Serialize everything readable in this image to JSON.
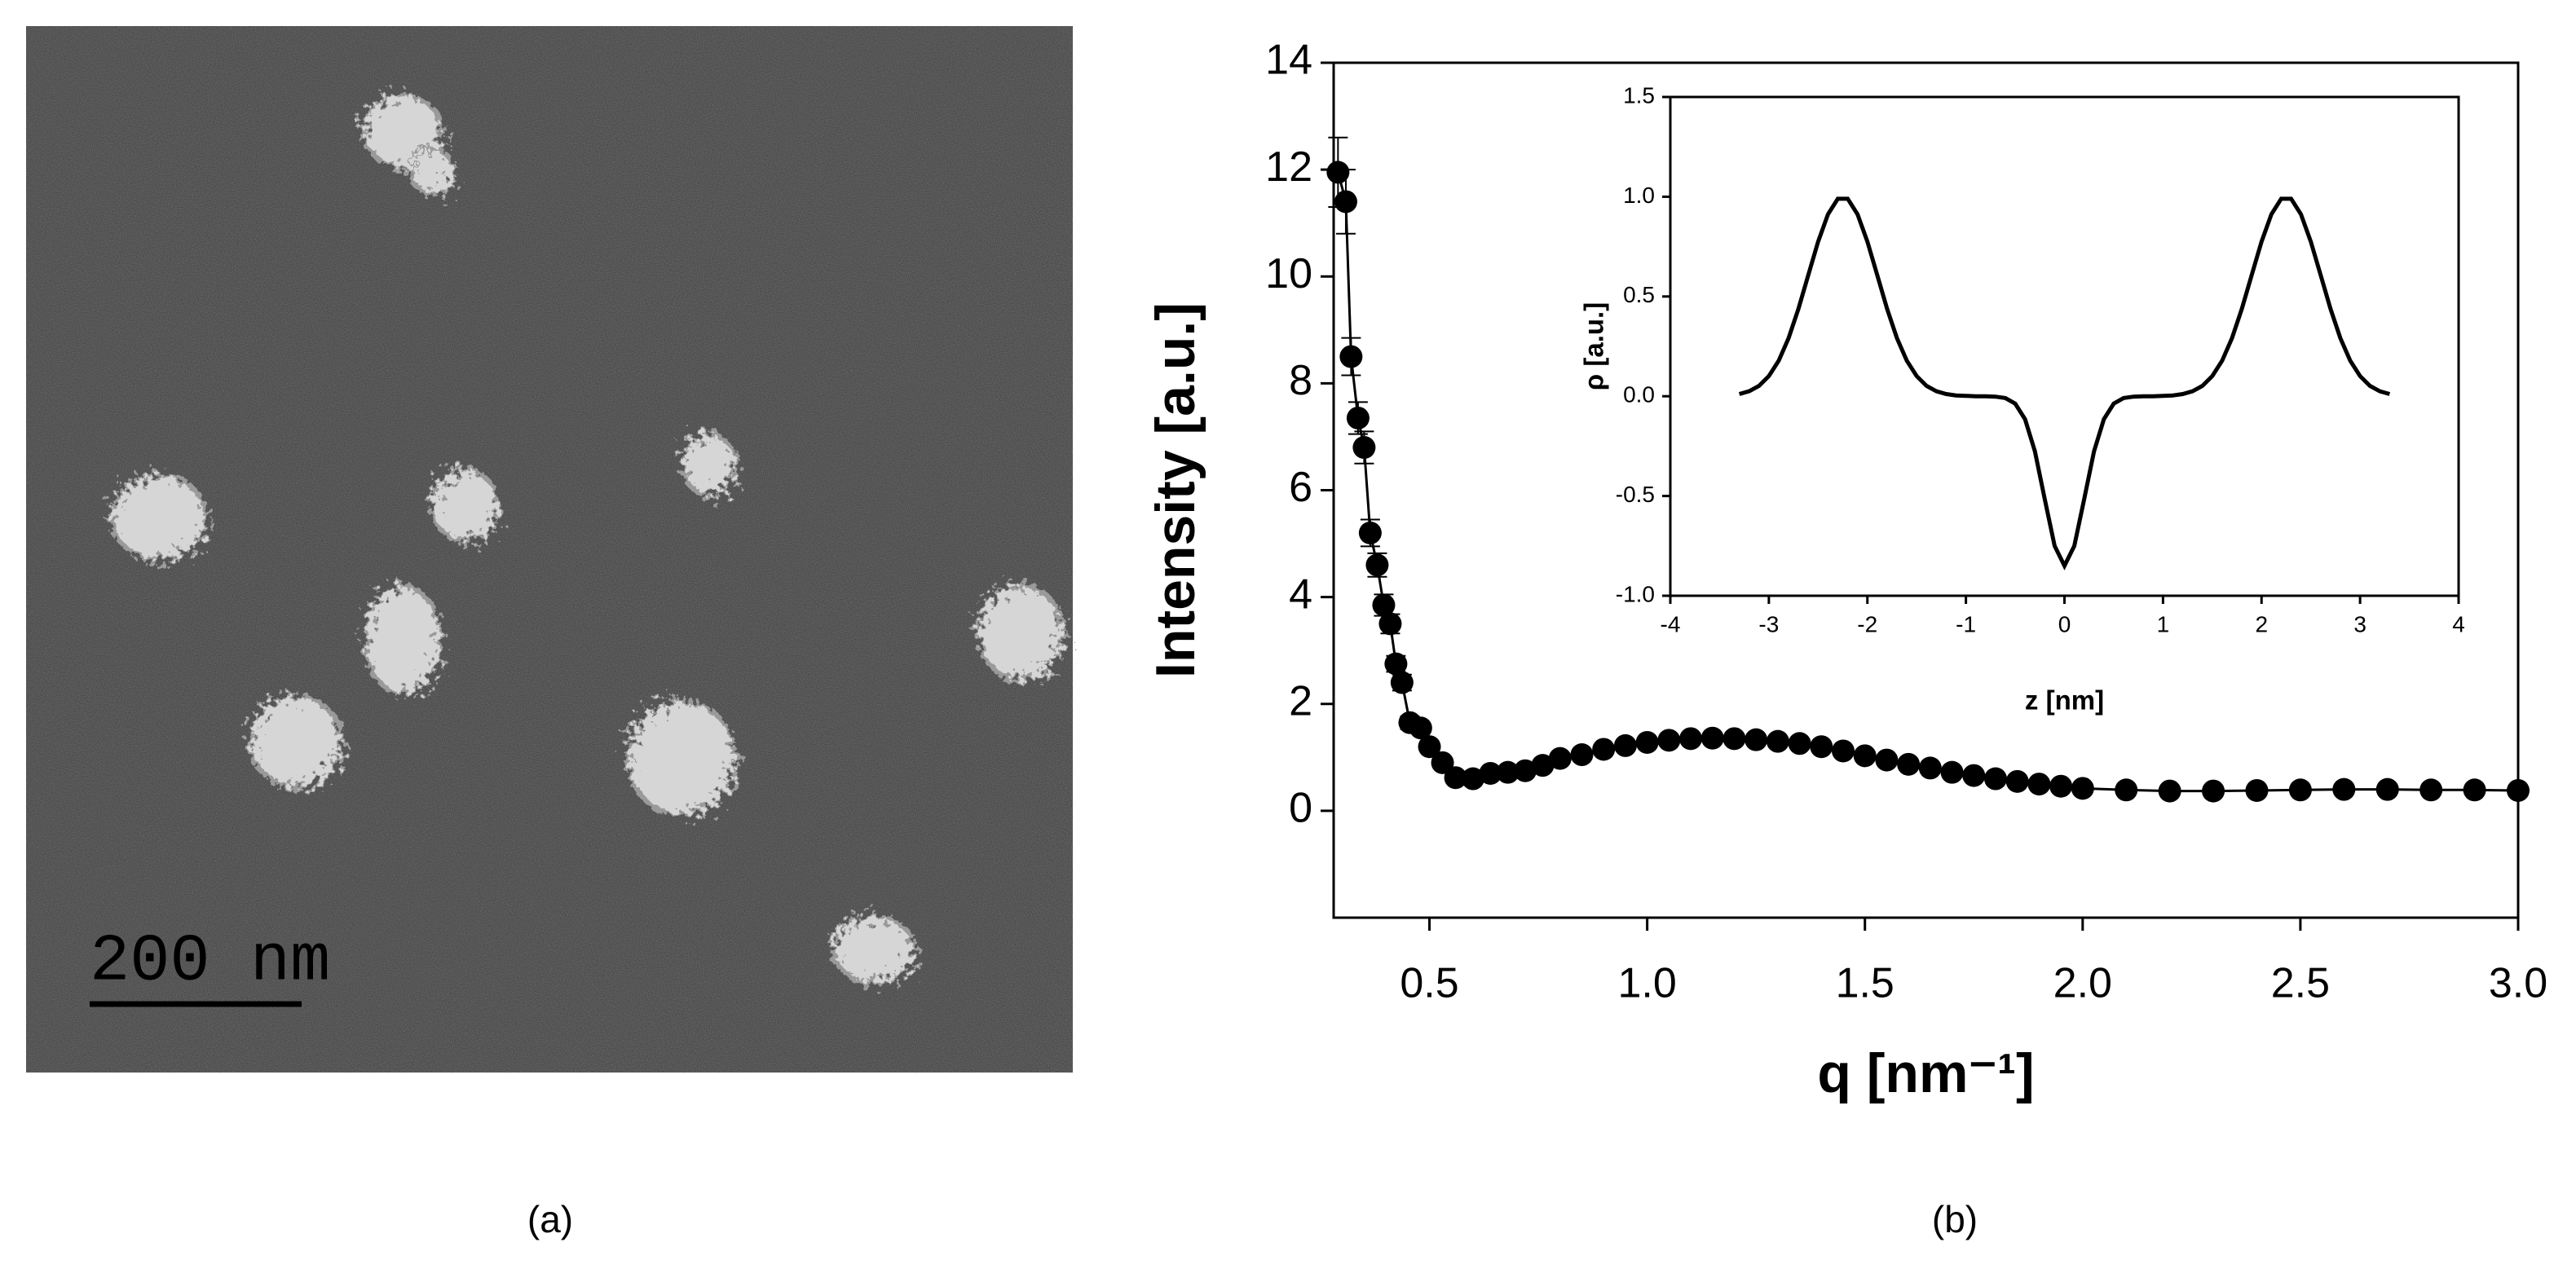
{
  "panel_a": {
    "scale_bar_label": "200 nm",
    "caption": "(a)"
  },
  "panel_b": {
    "caption": "(b)"
  },
  "chart_data": [
    {
      "type": "scatter",
      "x_label": "q [nm⁻¹]",
      "y_label": "Intensity [a.u.]",
      "xlim": [
        0.28,
        3.0
      ],
      "ylim": [
        -2,
        14
      ],
      "xticks": [
        0.5,
        {
          "value": 1.0,
          "label": "1.0"
        },
        1.5,
        {
          "value": 2.0,
          "label": "2.0"
        },
        2.5,
        {
          "value": 3.0,
          "label": "3.0"
        }
      ],
      "yticks": [
        0,
        2,
        4,
        6,
        8,
        10,
        12,
        14
      ],
      "color": "#000000",
      "x": [
        0.29,
        0.308,
        0.32,
        0.336,
        0.35,
        0.364,
        0.38,
        0.395,
        0.41,
        0.423,
        0.437,
        0.455,
        0.48,
        0.5,
        0.53,
        0.56,
        0.6,
        0.64,
        0.68,
        0.72,
        0.76,
        0.8,
        0.85,
        0.9,
        0.95,
        1.0,
        1.05,
        1.1,
        1.15,
        1.2,
        1.25,
        1.3,
        1.35,
        1.4,
        1.45,
        1.5,
        1.55,
        1.6,
        1.65,
        1.7,
        1.75,
        1.8,
        1.85,
        1.9,
        1.95,
        2.0,
        2.1,
        2.2,
        2.3,
        2.4,
        2.5,
        2.6,
        2.7,
        2.8,
        2.9,
        3.0
      ],
      "values": [
        11.95,
        11.4,
        8.5,
        7.35,
        6.8,
        5.2,
        4.6,
        3.85,
        3.5,
        2.75,
        2.4,
        1.65,
        1.55,
        1.2,
        0.9,
        0.62,
        0.6,
        0.7,
        0.72,
        0.75,
        0.85,
        0.98,
        1.05,
        1.15,
        1.22,
        1.28,
        1.32,
        1.35,
        1.36,
        1.35,
        1.33,
        1.3,
        1.26,
        1.2,
        1.12,
        1.03,
        0.95,
        0.87,
        0.8,
        0.72,
        0.66,
        0.6,
        0.55,
        0.5,
        0.46,
        0.42,
        0.39,
        0.37,
        0.37,
        0.38,
        0.39,
        0.4,
        0.4,
        0.39,
        0.39,
        0.38
      ],
      "errors": [
        0.65,
        0.6,
        0.35,
        0.3,
        0.3,
        0.25,
        0.22,
        0.2,
        0.18,
        0.15,
        0.15,
        0.12,
        0.08,
        0.08,
        0.08,
        0.08,
        0.08,
        0.08,
        0.08,
        0.08,
        0.08,
        0.08,
        0.08,
        0.08,
        0.08,
        0.08,
        0.08,
        0.08,
        0.08,
        0.08,
        0.08,
        0.08,
        0.08,
        0.08,
        0.08,
        0.08,
        0.08,
        0.08,
        0.08,
        0.08,
        0.08,
        0.08,
        0.08,
        0.08,
        0.08,
        0.08,
        0.08,
        0.08,
        0.08,
        0.08,
        0.08,
        0.08,
        0.08,
        0.08,
        0.08,
        0.08
      ]
    },
    {
      "type": "line",
      "x_label": "z [nm]",
      "y_label": "ρ [a.u.]",
      "xlim": [
        -4,
        4
      ],
      "ylim": [
        -1.0,
        1.5
      ],
      "xticks": [
        -4,
        -3,
        -2,
        -1,
        0,
        1,
        2,
        3,
        4
      ],
      "yticks": [
        {
          "value": -1.0,
          "label": "-1.0"
        },
        -0.5,
        {
          "value": 0.0,
          "label": "0.0"
        },
        0.5,
        {
          "value": 1.0,
          "label": "1.0"
        },
        1.5
      ],
      "color": "#000000",
      "x": [
        -3.3,
        -3.2,
        -3.1,
        -3.0,
        -2.9,
        -2.8,
        -2.7,
        -2.6,
        -2.5,
        -2.4,
        -2.3,
        -2.2,
        -2.1,
        -2.0,
        -1.9,
        -1.8,
        -1.7,
        -1.6,
        -1.5,
        -1.4,
        -1.3,
        -1.2,
        -1.1,
        -1.0,
        -0.9,
        -0.8,
        -0.7,
        -0.6,
        -0.5,
        -0.4,
        -0.3,
        -0.2,
        -0.1,
        0.0,
        0.1,
        0.2,
        0.3,
        0.4,
        0.5,
        0.6,
        0.7,
        0.8,
        0.9,
        1.0,
        1.1,
        1.2,
        1.3,
        1.4,
        1.5,
        1.6,
        1.7,
        1.8,
        1.9,
        2.0,
        2.1,
        2.2,
        2.3,
        2.4,
        2.5,
        2.6,
        2.7,
        2.8,
        2.9,
        3.0,
        3.1,
        3.2,
        3.3
      ],
      "values": [
        0.011,
        0.025,
        0.052,
        0.101,
        0.178,
        0.291,
        0.438,
        0.607,
        0.775,
        0.912,
        0.99,
        0.99,
        0.912,
        0.775,
        0.607,
        0.438,
        0.291,
        0.178,
        0.101,
        0.052,
        0.025,
        0.011,
        0.004,
        0.002,
        0,
        0,
        -0.002,
        -0.009,
        -0.037,
        -0.115,
        -0.276,
        -0.516,
        -0.75,
        -0.85,
        -0.75,
        -0.516,
        -0.276,
        -0.115,
        -0.037,
        -0.009,
        -0.002,
        0,
        0,
        0.002,
        0.004,
        0.011,
        0.025,
        0.052,
        0.101,
        0.178,
        0.291,
        0.438,
        0.607,
        0.775,
        0.912,
        0.99,
        0.99,
        0.912,
        0.775,
        0.607,
        0.438,
        0.291,
        0.178,
        0.101,
        0.052,
        0.025,
        0.011
      ]
    }
  ]
}
